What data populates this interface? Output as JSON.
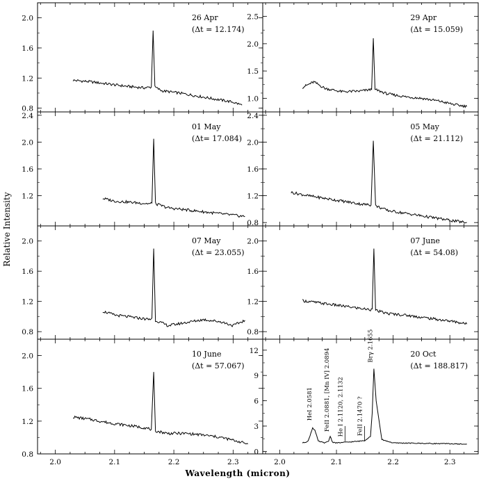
{
  "chart_data": {
    "type": "line",
    "xlabel": "Wavelength (micron)",
    "ylabel": "Relative Intensity",
    "xlim": [
      1.97,
      2.35
    ],
    "xticks": [
      2.0,
      2.1,
      2.2,
      2.3
    ],
    "xtick_labels": [
      "2.0",
      "2.1",
      "2.2",
      "2.3"
    ],
    "panels": [
      {
        "date": "26 Apr",
        "delta_t": "(Δt = 12.174)",
        "ylim": [
          0.75,
          2.2
        ],
        "yticks": [
          0.8,
          1.2,
          1.6,
          2.0
        ],
        "ytick_labels": [
          "0.8",
          "1.2",
          "1.6",
          "2.0"
        ],
        "yaxis_side": "left",
        "series": {
          "x": [
            2.03,
            2.06,
            2.09,
            2.12,
            2.15,
            2.162,
            2.165,
            2.168,
            2.18,
            2.21,
            2.24,
            2.27,
            2.3,
            2.315
          ],
          "y": [
            1.17,
            1.15,
            1.12,
            1.09,
            1.07,
            1.08,
            1.83,
            1.08,
            1.03,
            1.0,
            0.96,
            0.92,
            0.88,
            0.84
          ]
        }
      },
      {
        "date": "29 Apr",
        "delta_t": "(Δt = 15.059)",
        "ylim": [
          0.75,
          2.75
        ],
        "yticks": [
          1.0,
          1.5,
          2.0,
          2.5
        ],
        "ytick_labels": [
          "1.0",
          "1.5",
          "2.0",
          "2.5"
        ],
        "yaxis_side": "left",
        "series": {
          "x": [
            2.04,
            2.05,
            2.06,
            2.08,
            2.11,
            2.14,
            2.162,
            2.165,
            2.168,
            2.19,
            2.22,
            2.25,
            2.28,
            2.31,
            2.33
          ],
          "y": [
            1.2,
            1.25,
            1.3,
            1.18,
            1.12,
            1.13,
            1.16,
            2.1,
            1.16,
            1.08,
            1.03,
            1.0,
            0.95,
            0.88,
            0.85
          ]
        }
      },
      {
        "date": "01 May",
        "delta_t": "(Δt= 17.084)",
        "ylim": [
          0.75,
          2.45
        ],
        "yticks": [
          1.2,
          1.6,
          2.0,
          2.4
        ],
        "ytick_labels": [
          "1.2",
          "1.6",
          "2.0",
          "2.4"
        ],
        "yaxis_side": "left",
        "series": {
          "x": [
            2.08,
            2.1,
            2.13,
            2.16,
            2.163,
            2.166,
            2.169,
            2.19,
            2.22,
            2.25,
            2.28,
            2.31,
            2.32
          ],
          "y": [
            1.16,
            1.12,
            1.1,
            1.08,
            1.09,
            2.05,
            1.08,
            1.02,
            0.99,
            0.96,
            0.93,
            0.9,
            0.89
          ]
        }
      },
      {
        "date": "05 May",
        "delta_t": "(Δt = 21.112)",
        "ylim": [
          0.75,
          2.45
        ],
        "yticks": [
          0.8,
          1.2,
          1.6,
          2.0,
          2.4
        ],
        "ytick_labels": [
          "0.8",
          "1.2",
          "1.6",
          "2.0",
          "2.4"
        ],
        "yaxis_side": "left",
        "series": {
          "x": [
            2.02,
            2.05,
            2.08,
            2.11,
            2.14,
            2.161,
            2.165,
            2.169,
            2.19,
            2.22,
            2.25,
            2.28,
            2.31,
            2.33
          ],
          "y": [
            1.25,
            1.2,
            1.16,
            1.12,
            1.08,
            1.06,
            2.02,
            1.05,
            0.98,
            0.94,
            0.9,
            0.86,
            0.82,
            0.8
          ]
        }
      },
      {
        "date": "07 May",
        "delta_t": "(Δt = 23.055)",
        "ylim": [
          0.7,
          2.2
        ],
        "yticks": [
          0.8,
          1.2,
          1.6,
          2.0
        ],
        "ytick_labels": [
          "0.8",
          "1.2",
          "1.6",
          "2.0"
        ],
        "yaxis_side": "left",
        "series": {
          "x": [
            2.08,
            2.1,
            2.13,
            2.16,
            2.163,
            2.166,
            2.169,
            2.19,
            2.22,
            2.25,
            2.28,
            2.3,
            2.32
          ],
          "y": [
            1.07,
            1.02,
            0.99,
            0.96,
            0.98,
            1.9,
            0.95,
            0.88,
            0.92,
            0.96,
            0.93,
            0.88,
            0.95
          ]
        }
      },
      {
        "date": "07 June",
        "delta_t": "(Δt = 54.08)",
        "ylim": [
          0.7,
          2.2
        ],
        "yticks": [
          0.8,
          1.2,
          1.6,
          2.0
        ],
        "ytick_labels": [
          "0.8",
          "1.2",
          "1.6",
          "2.0"
        ],
        "yaxis_side": "left",
        "series": {
          "x": [
            2.04,
            2.07,
            2.1,
            2.13,
            2.16,
            2.163,
            2.166,
            2.169,
            2.19,
            2.22,
            2.25,
            2.28,
            2.31,
            2.33
          ],
          "y": [
            1.21,
            1.18,
            1.15,
            1.12,
            1.09,
            1.1,
            1.9,
            1.08,
            1.04,
            1.02,
            0.99,
            0.96,
            0.93,
            0.9
          ]
        }
      },
      {
        "date": "10 June",
        "delta_t": "(Δt = 57.067)",
        "ylim": [
          0.8,
          2.2
        ],
        "yticks": [
          0.8,
          1.2,
          1.6,
          2.0
        ],
        "ytick_labels": [
          "0.8",
          "1.2",
          "1.6",
          "2.0"
        ],
        "yaxis_side": "left",
        "series": {
          "x": [
            2.03,
            2.06,
            2.09,
            2.12,
            2.15,
            2.162,
            2.166,
            2.169,
            2.19,
            2.22,
            2.25,
            2.28,
            2.31,
            2.325
          ],
          "y": [
            1.25,
            1.22,
            1.18,
            1.15,
            1.12,
            1.1,
            1.8,
            1.08,
            1.05,
            1.05,
            1.03,
            1.0,
            0.95,
            0.92
          ]
        }
      },
      {
        "date": "20 Oct",
        "delta_t": "(Δt = 188.817)",
        "ylim": [
          -0.3,
          13.3
        ],
        "yticks": [
          0,
          3,
          6,
          9,
          12
        ],
        "ytick_labels": [
          "0",
          "3",
          "6",
          "9",
          "12"
        ],
        "yaxis_side": "left",
        "series": {
          "x": [
            2.04,
            2.05,
            2.055,
            2.058,
            2.062,
            2.068,
            2.08,
            2.086,
            2.089,
            2.093,
            2.1,
            2.12,
            2.14,
            2.15,
            2.16,
            2.163,
            2.166,
            2.17,
            2.18,
            2.2,
            2.25,
            2.3,
            2.33
          ],
          "y": [
            1.0,
            1.2,
            2.2,
            2.8,
            2.5,
            1.2,
            1.0,
            1.2,
            1.8,
            1.1,
            1.0,
            1.1,
            1.2,
            1.3,
            1.8,
            4.5,
            9.8,
            6.0,
            1.4,
            1.0,
            0.95,
            0.9,
            0.85
          ]
        },
        "line_labels": [
          {
            "text": "HeI 2.0581",
            "x": 2.0581
          },
          {
            "text": "FeII 2.0881, [Mn IV] 2.0894",
            "x": 2.0888
          },
          {
            "text": "He I 2.1120, 2.1132",
            "x": 2.1126
          },
          {
            "text": "FeII 2.1470 ?",
            "x": 2.147
          },
          {
            "text": "Brγ 2.1655",
            "x": 2.1655
          }
        ]
      }
    ]
  }
}
